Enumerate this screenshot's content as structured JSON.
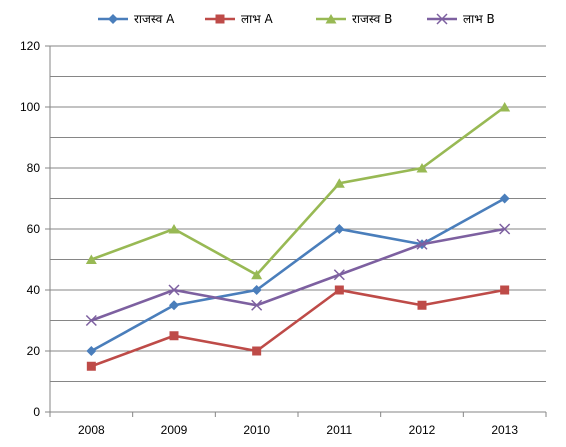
{
  "chart_data": {
    "type": "line",
    "title": "",
    "xlabel": "",
    "ylabel": "",
    "categories": [
      "2008",
      "2009",
      "2010",
      "2011",
      "2012",
      "2013"
    ],
    "ylim": [
      0,
      120
    ],
    "yticks": [
      "0",
      "20",
      "40",
      "60",
      "80",
      "100",
      "120"
    ],
    "grid": true,
    "legend_position": "top",
    "series": [
      {
        "name": "राजस्व A",
        "marker": "diamond",
        "color": "#4a7ebb",
        "values": [
          20,
          35,
          40,
          60,
          55,
          70
        ]
      },
      {
        "name": "लाभ  A",
        "marker": "square",
        "color": "#be4b48",
        "values": [
          15,
          25,
          20,
          40,
          35,
          40
        ]
      },
      {
        "name": "राजस्व  B",
        "marker": "triangle",
        "color": "#98b954",
        "values": [
          50,
          60,
          45,
          75,
          80,
          100
        ]
      },
      {
        "name": "लाभ  B",
        "marker": "x",
        "color": "#7d60a0",
        "values": [
          30,
          40,
          35,
          45,
          55,
          60
        ]
      }
    ]
  }
}
